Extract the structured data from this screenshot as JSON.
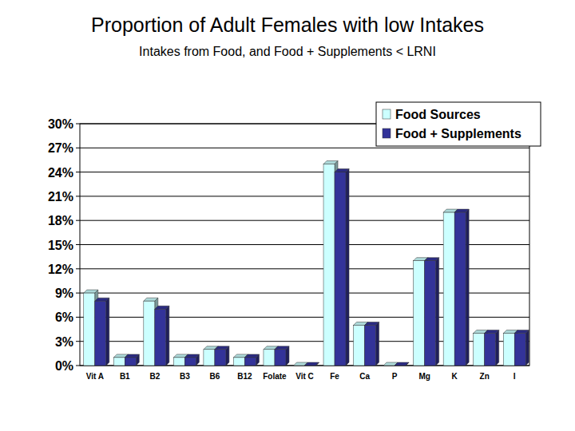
{
  "chart_data": {
    "type": "bar",
    "title": "Proportion of Adult Females with low Intakes",
    "subtitle": "Intakes from Food, and Food + Supplements < LRNI",
    "categories": [
      "Vit A",
      "B1",
      "B2",
      "B3",
      "B6",
      "B12",
      "Folate",
      "Vit C",
      "Fe",
      "Ca",
      "P",
      "Mg",
      "K",
      "Zn",
      "I"
    ],
    "series": [
      {
        "name": "Food Sources",
        "color": "#ccffff",
        "values": [
          9,
          1,
          8,
          1,
          2,
          1,
          2,
          0,
          25,
          5,
          0,
          13,
          19,
          4,
          4
        ]
      },
      {
        "name": "Food + Supplements",
        "color": "#333399",
        "values": [
          8,
          1,
          7,
          1,
          2,
          1,
          2,
          0,
          24,
          5,
          0,
          13,
          19,
          4,
          4
        ]
      }
    ],
    "ylim": [
      0,
      30
    ],
    "yticks": [
      {
        "value": 0,
        "label": "0%"
      },
      {
        "value": 3,
        "label": "3%"
      },
      {
        "value": 6,
        "label": "6%"
      },
      {
        "value": 9,
        "label": "9%"
      },
      {
        "value": 12,
        "label": "12%"
      },
      {
        "value": 15,
        "label": "15%"
      },
      {
        "value": 18,
        "label": "18%"
      },
      {
        "value": 21,
        "label": "21%"
      },
      {
        "value": 24,
        "label": "24%"
      },
      {
        "value": 27,
        "label": "27%"
      },
      {
        "value": 30,
        "label": "30%"
      }
    ],
    "grid": true,
    "legend": "top-right"
  }
}
